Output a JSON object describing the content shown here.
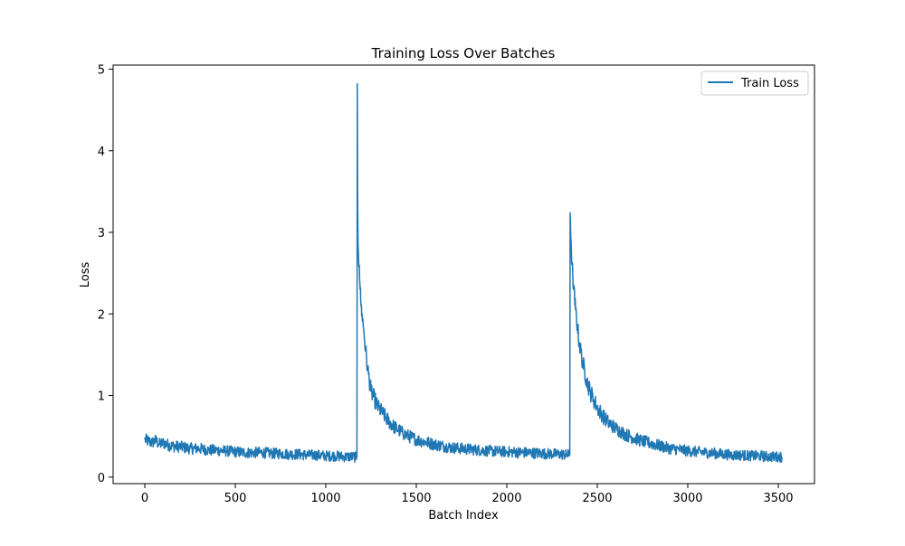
{
  "chart_data": {
    "type": "line",
    "title": "Training Loss Over Batches",
    "xlabel": "Batch Index",
    "ylabel": "Loss",
    "xlim": [
      -175,
      3700
    ],
    "ylim": [
      -0.08,
      5.05
    ],
    "xticks": [
      0,
      500,
      1000,
      1500,
      2000,
      2500,
      3000,
      3500
    ],
    "yticks": [
      0,
      1,
      2,
      3,
      4,
      5
    ],
    "grid": false,
    "legend": {
      "position": "top-right"
    },
    "line_color": "#1f77b4",
    "series": [
      {
        "name": "Train Loss",
        "x": [
          0,
          20,
          40,
          60,
          80,
          100,
          150,
          200,
          250,
          300,
          350,
          400,
          450,
          500,
          550,
          600,
          650,
          700,
          750,
          800,
          850,
          900,
          950,
          1000,
          1050,
          1100,
          1150,
          1170,
          1172,
          1174,
          1176,
          1178,
          1180,
          1185,
          1190,
          1195,
          1200,
          1210,
          1220,
          1230,
          1240,
          1250,
          1270,
          1290,
          1310,
          1330,
          1350,
          1375,
          1400,
          1425,
          1450,
          1500,
          1550,
          1600,
          1650,
          1700,
          1800,
          1900,
          2000,
          2100,
          2200,
          2300,
          2345,
          2348,
          2350,
          2352,
          2355,
          2360,
          2365,
          2370,
          2380,
          2390,
          2400,
          2420,
          2440,
          2460,
          2480,
          2500,
          2530,
          2560,
          2600,
          2650,
          2700,
          2750,
          2800,
          2850,
          2900,
          2950,
          3000,
          3050,
          3100,
          3150,
          3200,
          3250,
          3300,
          3350,
          3400,
          3450,
          3500,
          3520
        ],
        "y": [
          0.46,
          0.44,
          0.42,
          0.45,
          0.4,
          0.42,
          0.38,
          0.37,
          0.35,
          0.35,
          0.33,
          0.33,
          0.32,
          0.31,
          0.3,
          0.3,
          0.3,
          0.29,
          0.29,
          0.28,
          0.28,
          0.27,
          0.27,
          0.26,
          0.26,
          0.25,
          0.25,
          0.24,
          0.25,
          4.82,
          3.4,
          2.85,
          2.75,
          2.6,
          2.3,
          2.1,
          2.0,
          1.8,
          1.55,
          1.35,
          1.2,
          1.05,
          0.95,
          0.85,
          0.8,
          0.73,
          0.68,
          0.62,
          0.58,
          0.54,
          0.51,
          0.46,
          0.43,
          0.4,
          0.38,
          0.36,
          0.34,
          0.32,
          0.31,
          0.3,
          0.29,
          0.28,
          0.27,
          0.28,
          3.24,
          3.1,
          2.9,
          2.6,
          2.45,
          2.3,
          2.05,
          1.85,
          1.65,
          1.4,
          1.2,
          1.05,
          0.95,
          0.85,
          0.75,
          0.67,
          0.6,
          0.53,
          0.48,
          0.44,
          0.41,
          0.38,
          0.35,
          0.34,
          0.32,
          0.31,
          0.3,
          0.29,
          0.28,
          0.27,
          0.27,
          0.26,
          0.26,
          0.25,
          0.25,
          0.25
        ]
      }
    ]
  }
}
